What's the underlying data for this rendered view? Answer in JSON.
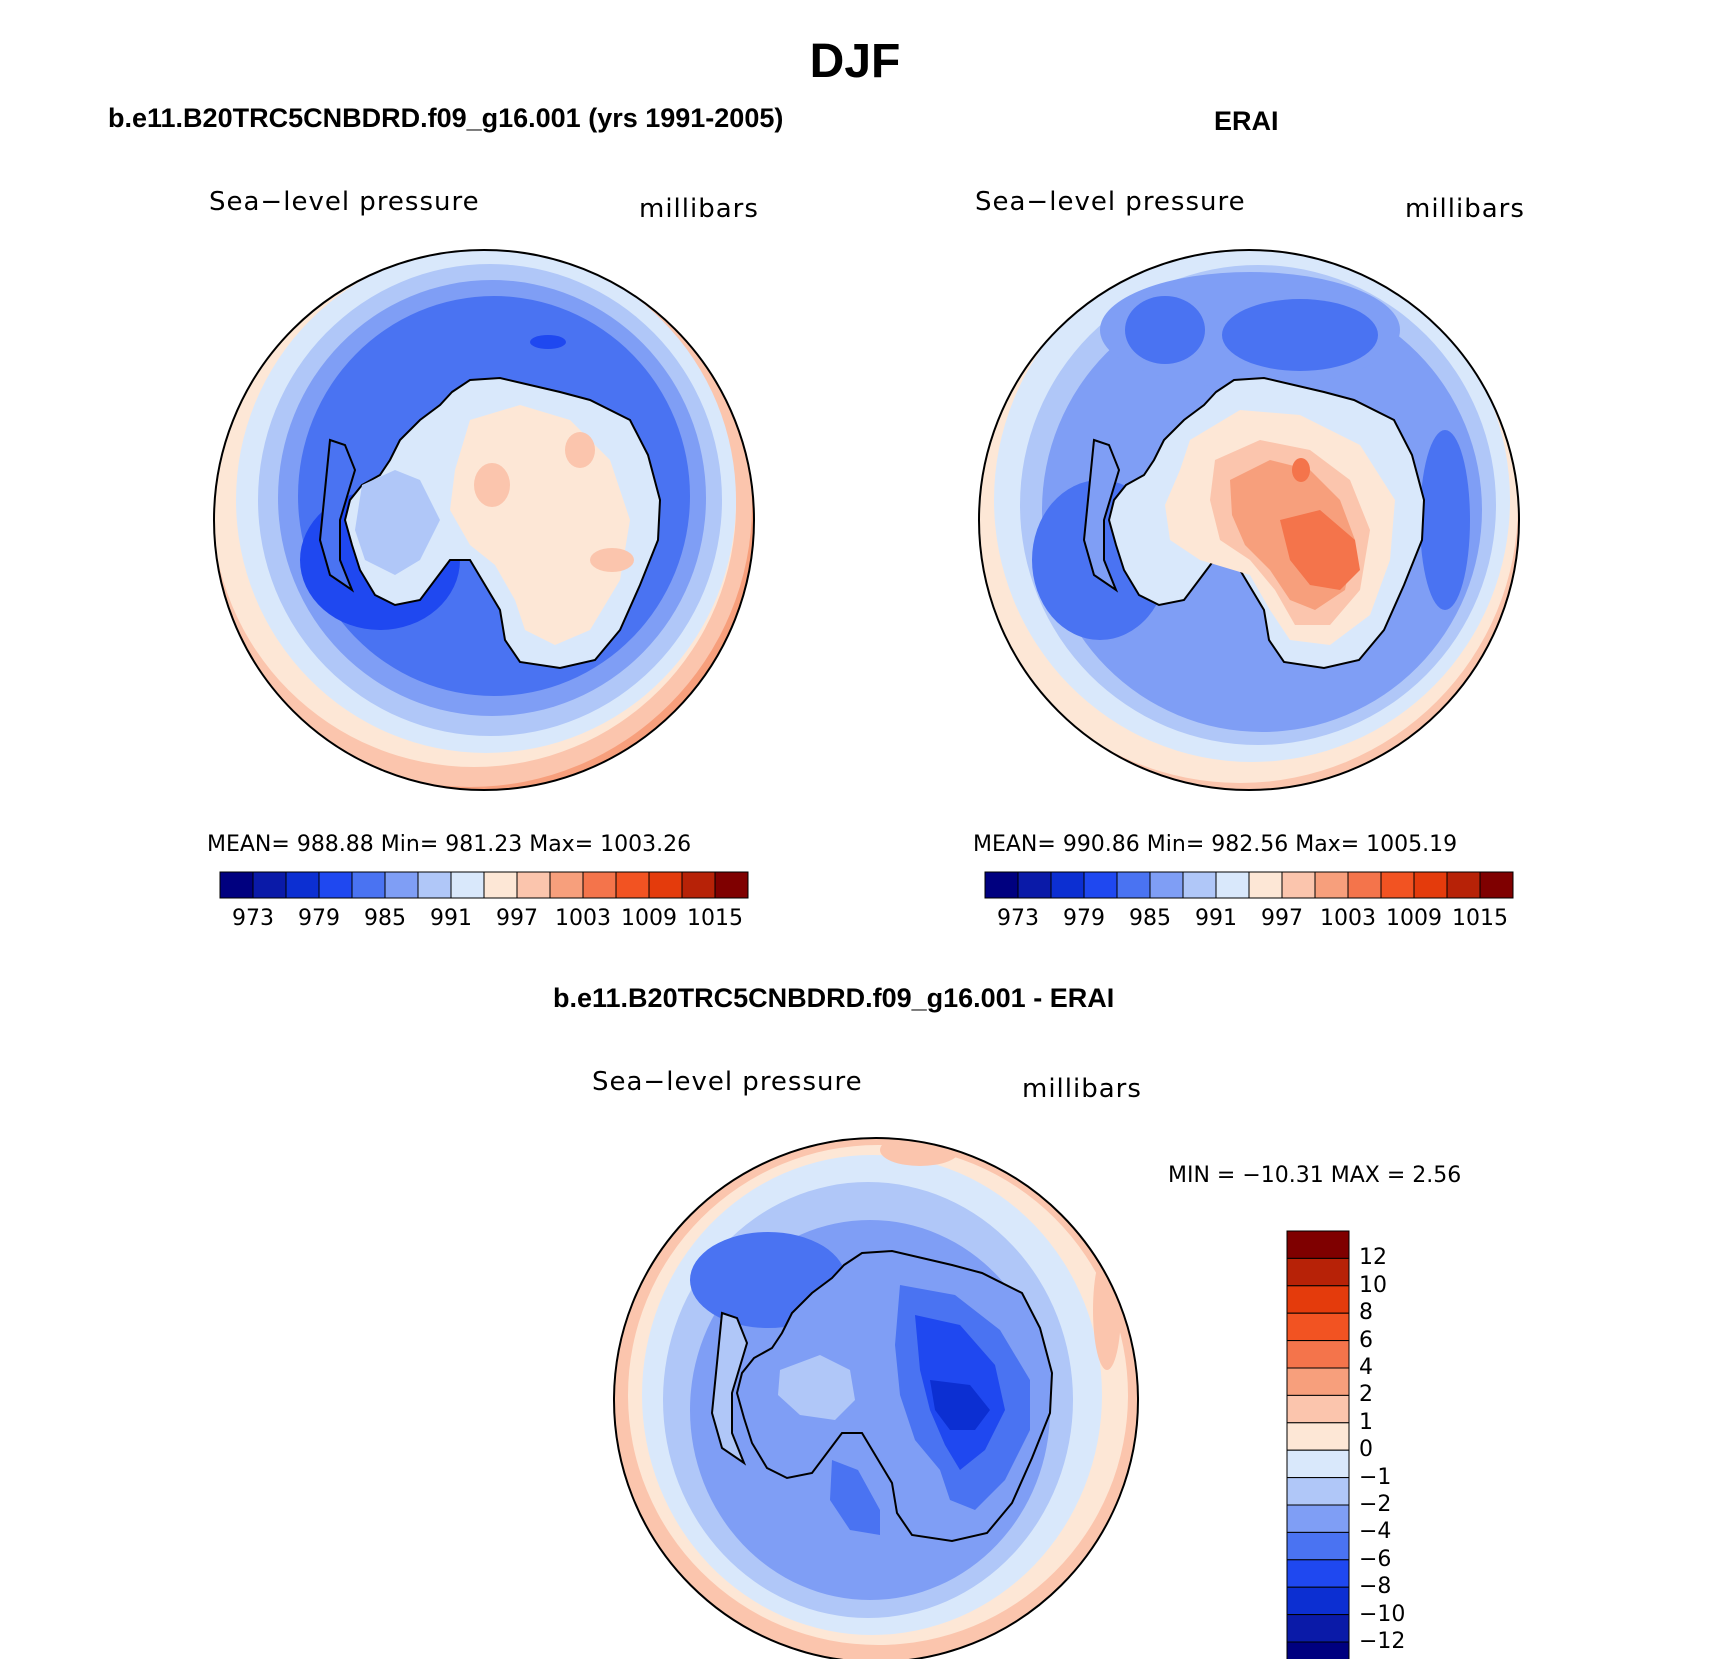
{
  "figure": {
    "season": "DJF",
    "left_panel": {
      "title": "b.e11.B20TRC5CNBDRD.f09_g16.001 (yrs 1991-2005)",
      "variable": "Sea−level pressure",
      "units": "millibars",
      "stats": "MEAN=  988.88   Min=  981.23   Max=  1003.26"
    },
    "right_panel": {
      "title": "ERAI",
      "variable": "Sea−level pressure",
      "units": "millibars",
      "stats": "MEAN=  990.86   Min=  982.56   Max=  1005.19"
    },
    "diff_panel": {
      "title": "b.e11.B20TRC5CNBDRD.f09_g16.001 - ERAI",
      "variable": "Sea−level pressure",
      "units": "millibars",
      "stats": "MIN  =  −10.31  MAX  =     2.56"
    }
  },
  "colorbars": {
    "abs_colors": [
      "#00007f",
      "#0a1aa8",
      "#0c2fd2",
      "#1f48f0",
      "#4a73f2",
      "#7f9ef5",
      "#b0c7f8",
      "#d9e8fb",
      "#fde7d6",
      "#fbc5ad",
      "#f79f7c",
      "#f4744b",
      "#f25322",
      "#e43b0c",
      "#b72207",
      "#7f0000"
    ],
    "abs_ticks": [
      "973",
      "979",
      "985",
      "991",
      "997",
      "1003",
      "1009",
      "1015"
    ],
    "diff_colors": [
      "#00007f",
      "#0a1aa8",
      "#0c2fd2",
      "#1f48f0",
      "#4a73f2",
      "#7f9ef5",
      "#b0c7f8",
      "#d9e8fb",
      "#fde7d6",
      "#fbc5ad",
      "#f79f7c",
      "#f4744b",
      "#f25322",
      "#e43b0c",
      "#b72207",
      "#7f0000"
    ],
    "diff_ticks": [
      "12",
      "10",
      "8",
      "6",
      "4",
      "2",
      "1",
      "0",
      "−1",
      "−2",
      "−4",
      "−6",
      "−8",
      "−10",
      "−12"
    ]
  }
}
